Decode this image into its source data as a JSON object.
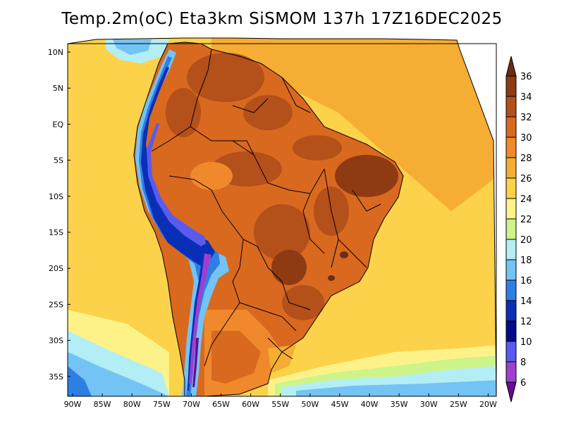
{
  "title": "Temp.2m(oC) Eta3km SiSMOM 137h 17Z16DEC2025",
  "map": {
    "lat_labels": [
      "10N",
      "5N",
      "EQ",
      "5S",
      "10S",
      "15S",
      "20S",
      "25S",
      "30S",
      "35S"
    ],
    "lon_labels": [
      "90W",
      "85W",
      "80W",
      "75W",
      "70W",
      "65W",
      "60W",
      "55W",
      "50W",
      "45W",
      "40W",
      "35W",
      "30W",
      "25W",
      "20W"
    ],
    "extent": {
      "lon_min": -90.5,
      "lon_max": -19.5,
      "lat_min": -37.5,
      "lat_max": 11.5
    }
  },
  "colorbar": {
    "labels": [
      "36",
      "34",
      "32",
      "30",
      "28",
      "26",
      "24",
      "22",
      "20",
      "18",
      "16",
      "14",
      "12",
      "10",
      "8",
      "6"
    ],
    "colors": [
      "#6b2c16",
      "#8e3b14",
      "#b4501a",
      "#d9691f",
      "#f0892c",
      "#f6ad33",
      "#fbd24a",
      "#fdf288",
      "#ccf48a",
      "#b3eef6",
      "#74c3f5",
      "#2e7fe3",
      "#0a2fb7",
      "#050a88",
      "#5a5af0",
      "#9f3fcf",
      "#6a0b8f"
    ]
  }
}
